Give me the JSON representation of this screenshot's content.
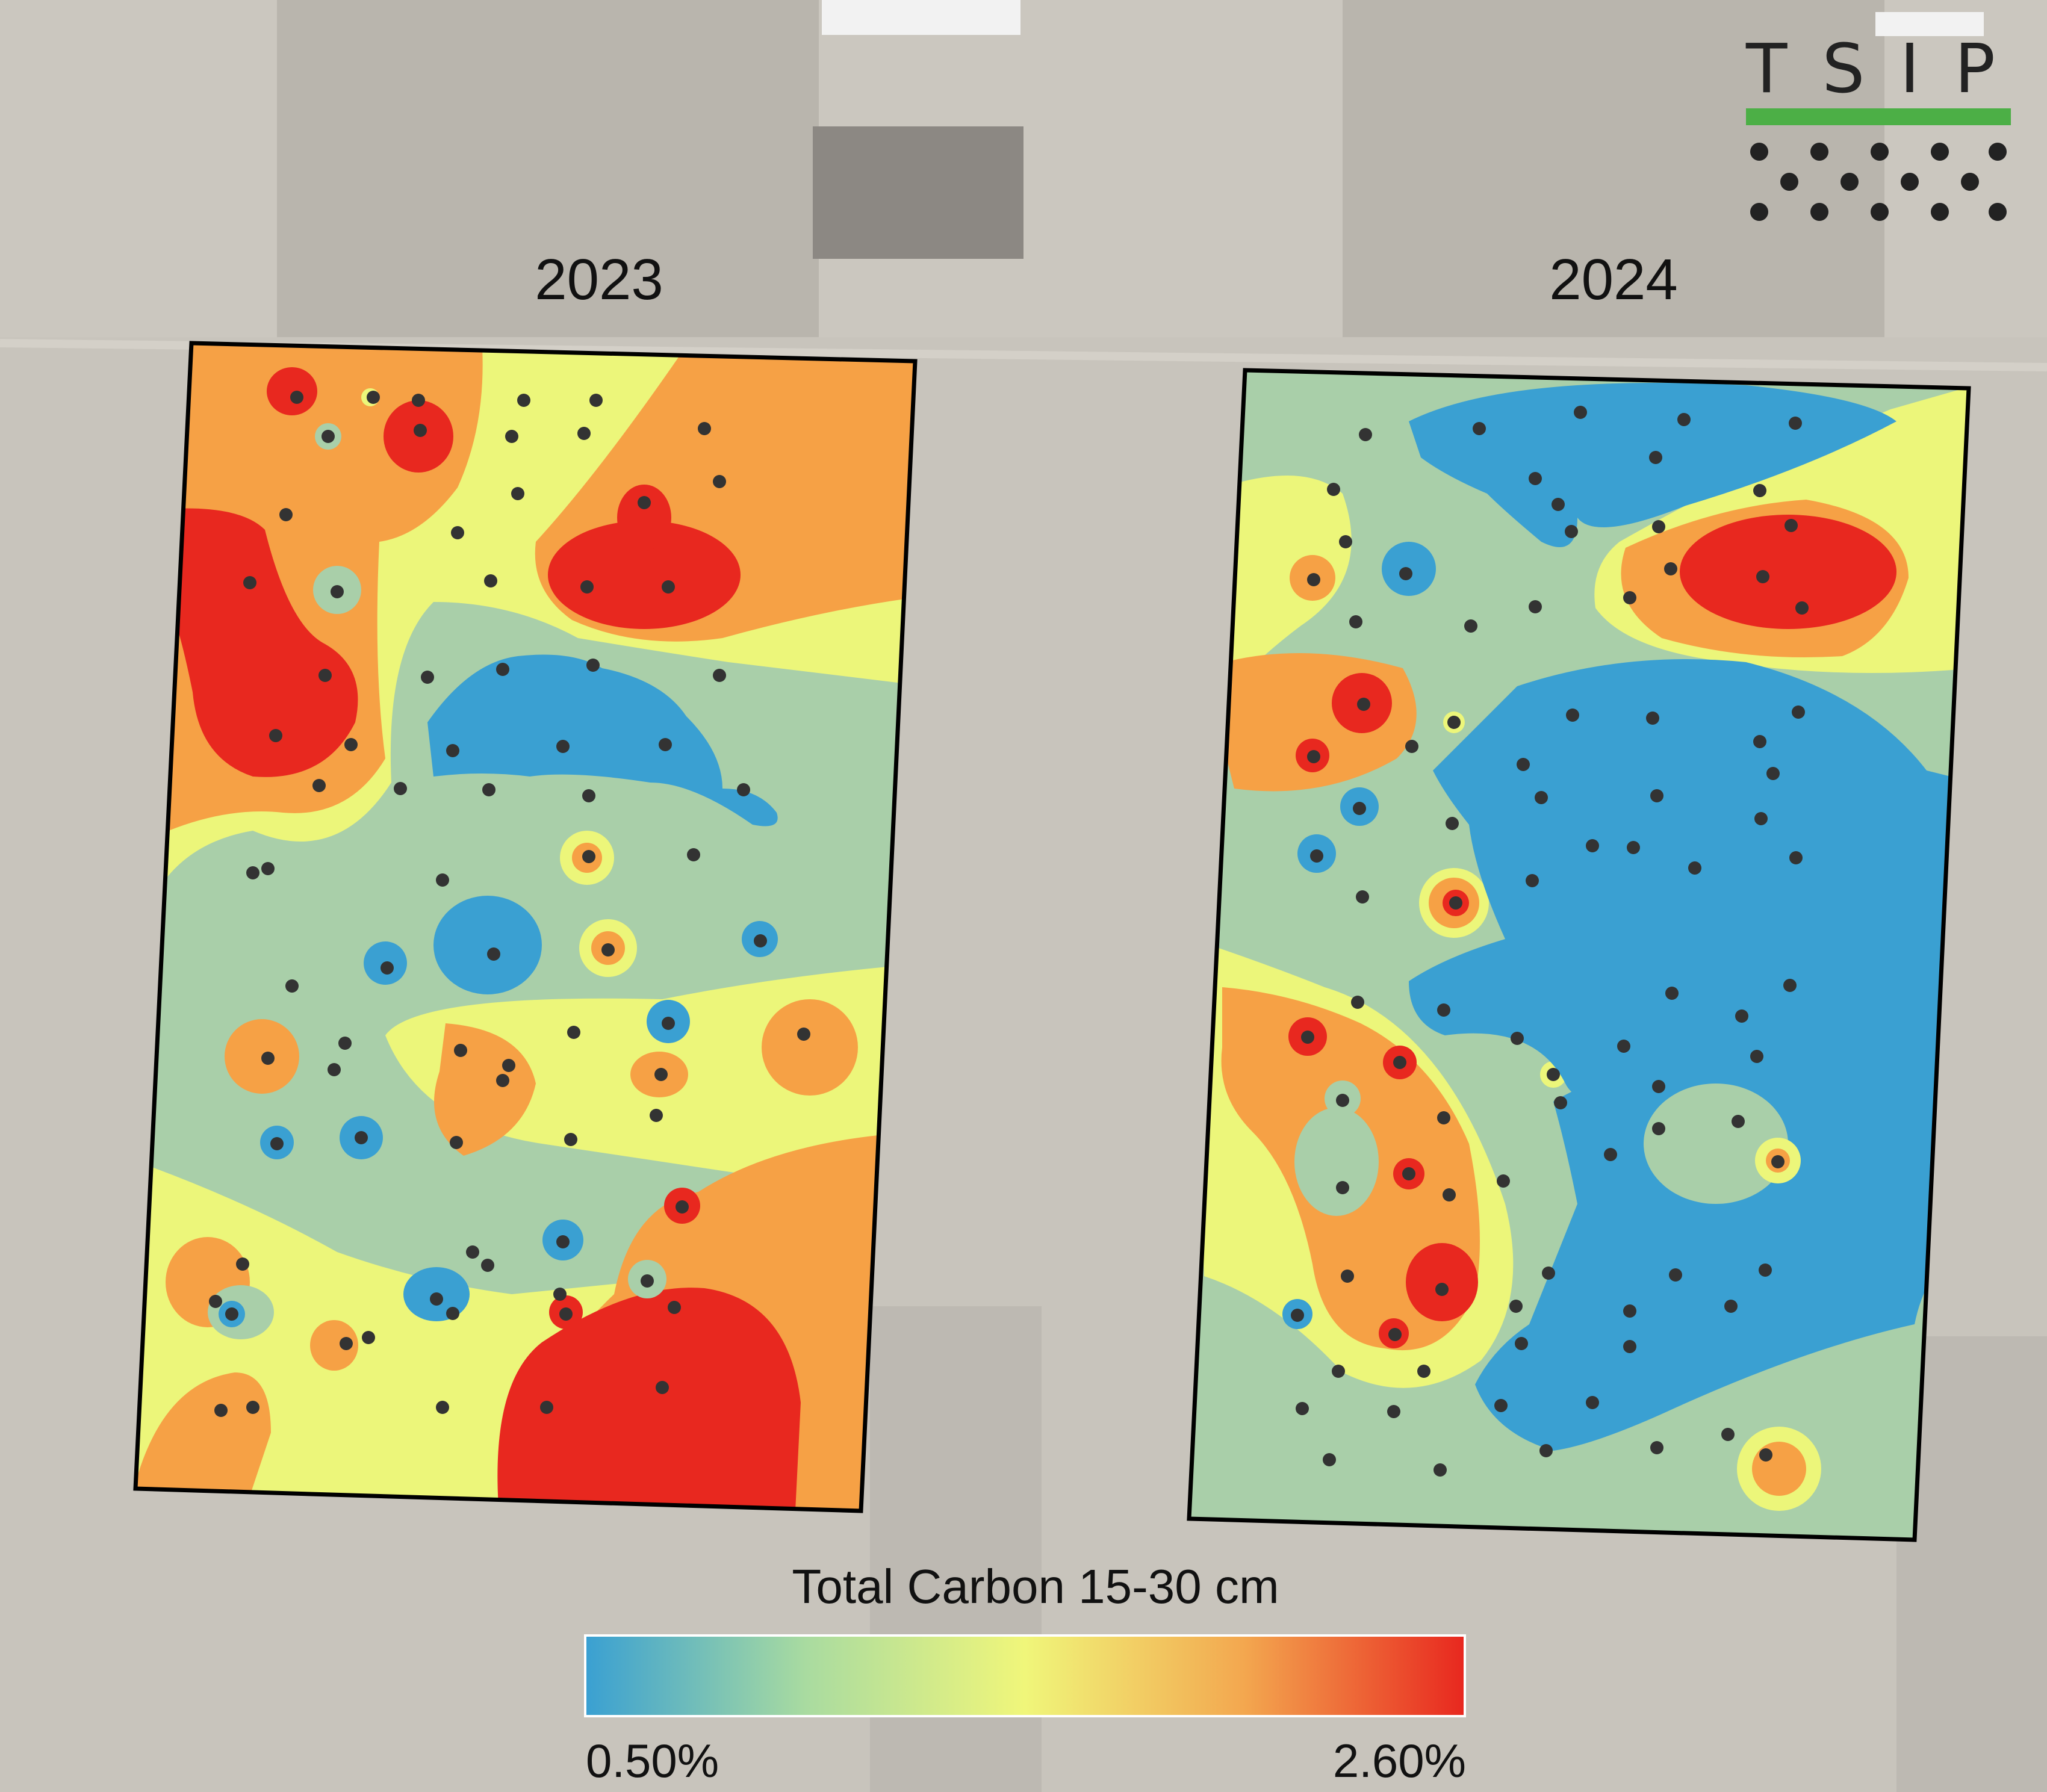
{
  "panels": [
    {
      "year": "2023"
    },
    {
      "year": "2024"
    }
  ],
  "legend": {
    "title": "Total Carbon 15-30 cm",
    "min_label": "0.50%",
    "max_label": "2.60%",
    "min_value": 0.5,
    "max_value": 2.6,
    "colors": [
      "#3aa0d2",
      "#a9cfa9",
      "#ecf67a",
      "#f6a145",
      "#e8281f"
    ]
  },
  "zone_colors": {
    "low": "#3aa0d2",
    "mid_low": "#a9cfa9",
    "mid": "#ecf67a",
    "mid_high": "#f6a145",
    "high": "#e8281f"
  },
  "logo": {
    "text": "TSIP",
    "line_color": "#4caf46"
  }
}
